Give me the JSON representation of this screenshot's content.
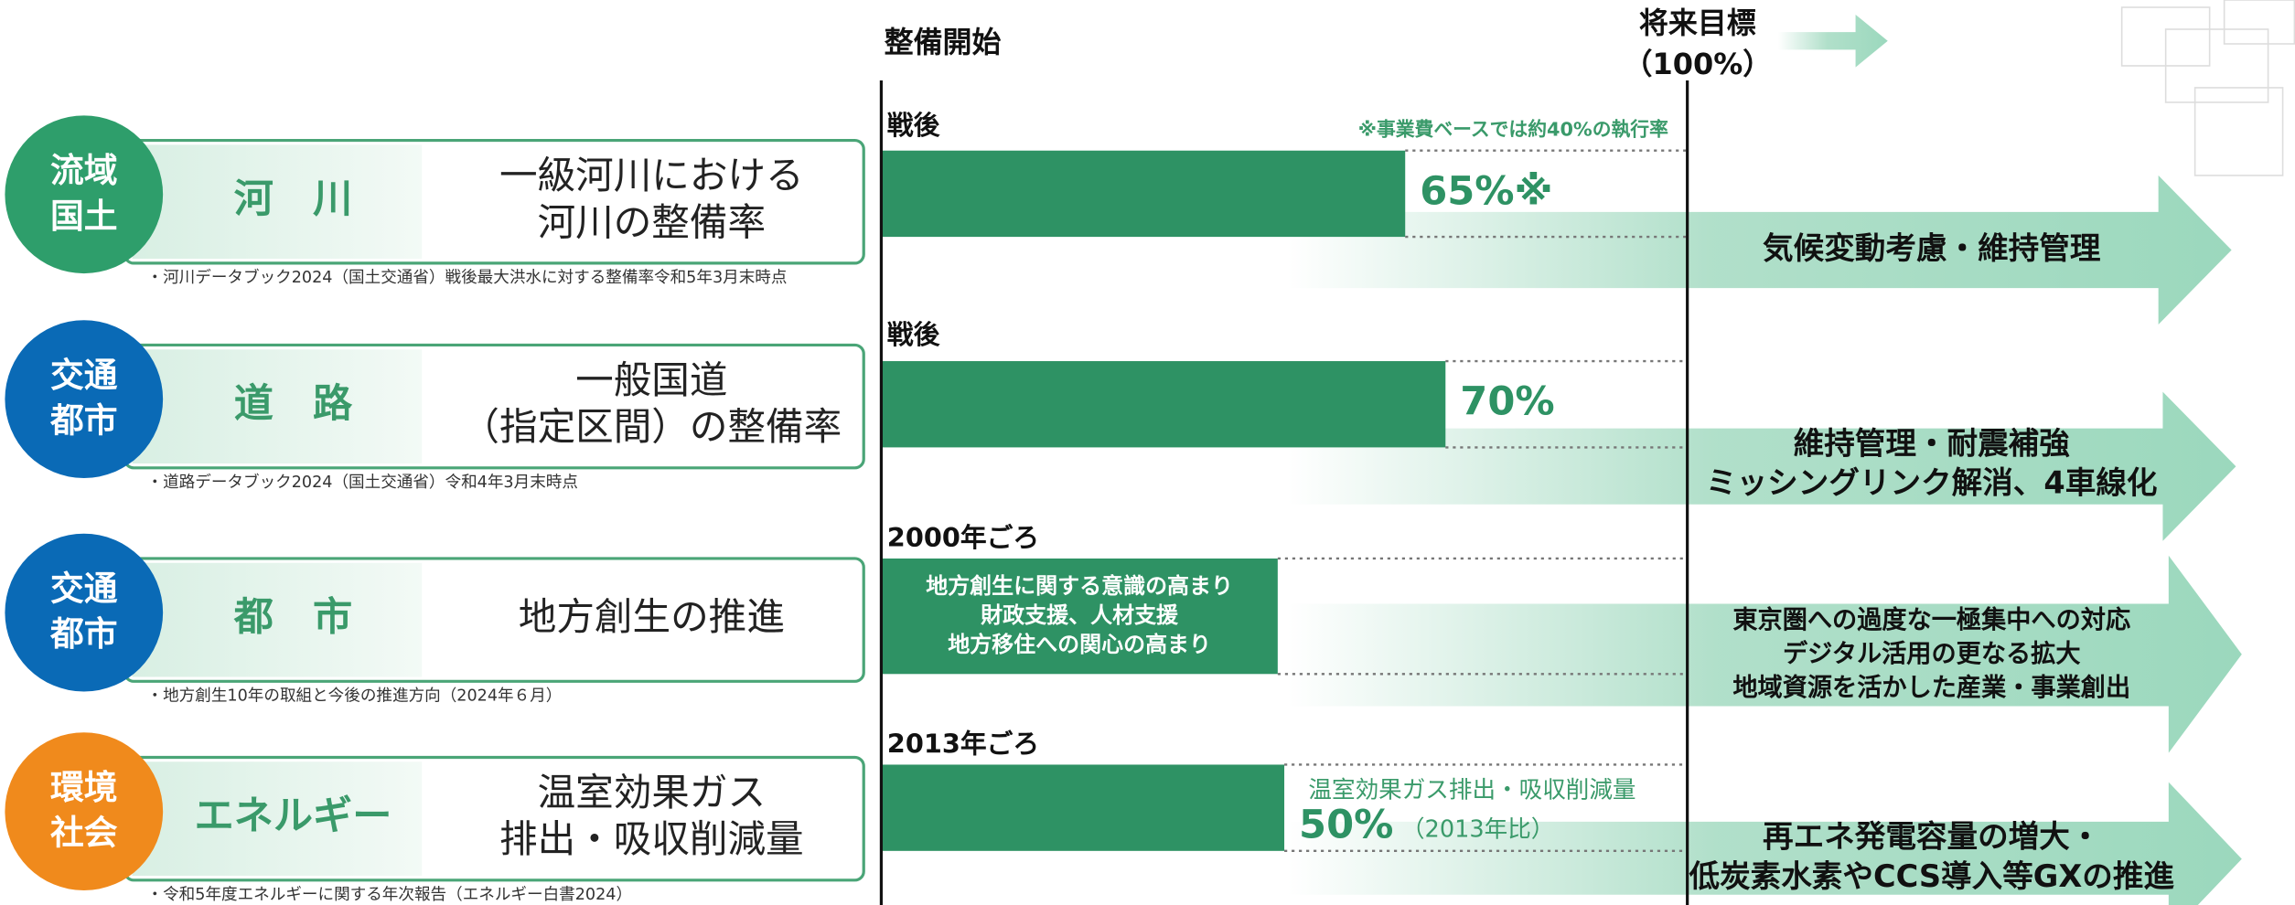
{
  "header": {
    "start_label": "整備開始",
    "target_title": "将来目標",
    "target": {
      "value": 100,
      "label": "（100%）"
    }
  },
  "rows": [
    {
      "badge": [
        "流域",
        "国土"
      ],
      "category": "河　川",
      "description": [
        "一級河川における",
        "河川の整備率"
      ],
      "source": "・河川データブック2024（国土交通省）戦後最大洪水に対する整備率令和5年3月末時点",
      "start": "戦後",
      "note": "※事業費ベースでは約40%の執行率",
      "value": 65,
      "value_label": "65%※",
      "future": [
        "気候変動考慮・維持管理"
      ]
    },
    {
      "badge": [
        "交通",
        "都市"
      ],
      "category": "道　路",
      "description": [
        "一般国道",
        "（指定区間）の整備率"
      ],
      "source": "・道路データブック2024（国土交通省）令和4年3月末時点",
      "start": "戦後",
      "value": 70,
      "value_label": "70%",
      "future": [
        "維持管理・耐震補強",
        "ミッシングリンク解消、4車線化"
      ]
    },
    {
      "badge": [
        "交通",
        "都市"
      ],
      "category": "都　市",
      "description": [
        "地方創生の推進"
      ],
      "source": "・地方創生10年の取組と今後の推進方向（2024年６月）",
      "start": "2000年ごろ",
      "bar_text": [
        "地方創生に関する意識の高まり",
        "財政支援、人材支援",
        "地方移住への関心の高まり"
      ],
      "future": [
        "東京圏への過度な一極集中への対応",
        "デジタル活用の更なる拡大",
        "地域資源を活かした産業・事業創出"
      ]
    },
    {
      "badge": [
        "環境",
        "社会"
      ],
      "category": "エネルギー",
      "description": [
        "温室効果ガス",
        "排出・吸収削減量"
      ],
      "source": "・令和5年度エネルギーに関する年次報告（エネルギー白書2024）",
      "start": "2013年ごろ",
      "note": "温室効果ガス排出・吸収削減量",
      "value": 50,
      "value_label": "50%",
      "value_note": "（2013年比）",
      "future": [
        "再エネ発電容量の増大・",
        "低炭素水素やCCS導入等GXの推進"
      ]
    }
  ]
}
